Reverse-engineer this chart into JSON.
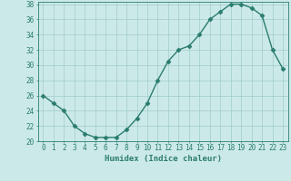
{
  "x": [
    0,
    1,
    2,
    3,
    4,
    5,
    6,
    7,
    8,
    9,
    10,
    11,
    12,
    13,
    14,
    15,
    16,
    17,
    18,
    19,
    20,
    21,
    22,
    23
  ],
  "y": [
    26,
    25,
    24,
    22,
    21,
    20.5,
    20.5,
    20.5,
    21.5,
    23,
    25,
    28,
    30.5,
    32,
    32.5,
    34,
    36,
    37,
    38,
    38,
    37.5,
    36.5,
    32,
    29.5
  ],
  "line_color": "#2a7d6e",
  "marker": "D",
  "marker_size": 2.5,
  "bg_color": "#cce9e9",
  "grid_color": "#a0cccc",
  "xlabel": "Humidex (Indice chaleur)",
  "ylim": [
    20,
    38
  ],
  "xlim": [
    -0.5,
    23.5
  ],
  "yticks": [
    20,
    22,
    24,
    26,
    28,
    30,
    32,
    34,
    36,
    38
  ],
  "xticks": [
    0,
    1,
    2,
    3,
    4,
    5,
    6,
    7,
    8,
    9,
    10,
    11,
    12,
    13,
    14,
    15,
    16,
    17,
    18,
    19,
    20,
    21,
    22,
    23
  ],
  "tick_color": "#2a7d6e",
  "label_fontsize": 6.5,
  "tick_fontsize": 5.5,
  "linewidth": 1.0
}
